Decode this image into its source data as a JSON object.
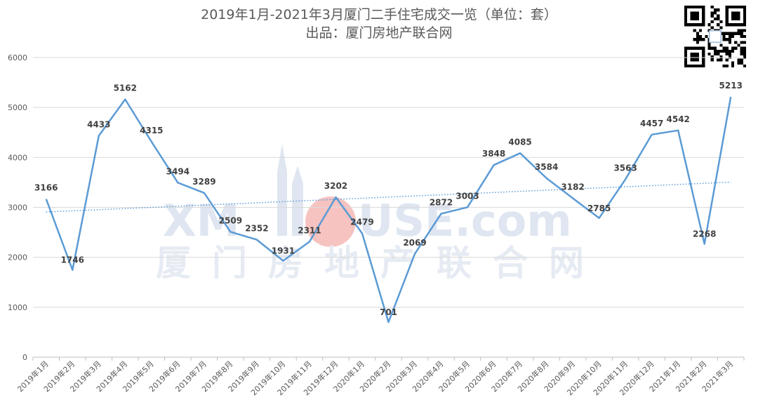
{
  "header": {
    "title": "2019年1月-2021年3月厦门二手住宅成交一览（单位：套）",
    "subtitle": "出品：厦门房地产联合网"
  },
  "watermark": {
    "en_left": "XM",
    "en_right": "USE.com",
    "cn": "厦门房地产联合网"
  },
  "colors": {
    "line": "#5b9bd5",
    "trend": "#5b9bd5",
    "grid": "#d9d9d9",
    "watermark_red": "#f4a7a3"
  },
  "chart_data": {
    "type": "line",
    "categories": [
      "2019年1月",
      "2019年2月",
      "2019年3月",
      "2019年4月",
      "2019年5月",
      "2019年6月",
      "2019年7月",
      "2019年8月",
      "2019年9月",
      "2019年10月",
      "2019年11月",
      "2019年12月",
      "2020年1月",
      "2020年2月",
      "2020年3月",
      "2020年4月",
      "2020年5月",
      "2020年6月",
      "2020年7月",
      "2020年8月",
      "2020年9月",
      "2020年10月",
      "2020年11月",
      "2020年12月",
      "2021年1月",
      "2021年2月",
      "2021年3月"
    ],
    "series": [
      {
        "values": [
          3166,
          1746,
          4433,
          5162,
          4315,
          3494,
          3289,
          2509,
          2352,
          1931,
          2311,
          3202,
          2479,
          701,
          2069,
          2872,
          3003,
          3848,
          4085,
          3584,
          3182,
          2785,
          3563,
          4457,
          4542,
          2268,
          5213
        ]
      }
    ],
    "trendline": {
      "type": "linear",
      "style": "dotted"
    },
    "title": "2019年1月-2021年3月厦门二手住宅成交一览（单位：套）",
    "subtitle": "出品：厦门房地产联合网",
    "ylim": [
      0,
      6000
    ],
    "yticks": [
      0,
      1000,
      2000,
      3000,
      4000,
      5000,
      6000
    ],
    "grid": true,
    "legend": "none"
  }
}
